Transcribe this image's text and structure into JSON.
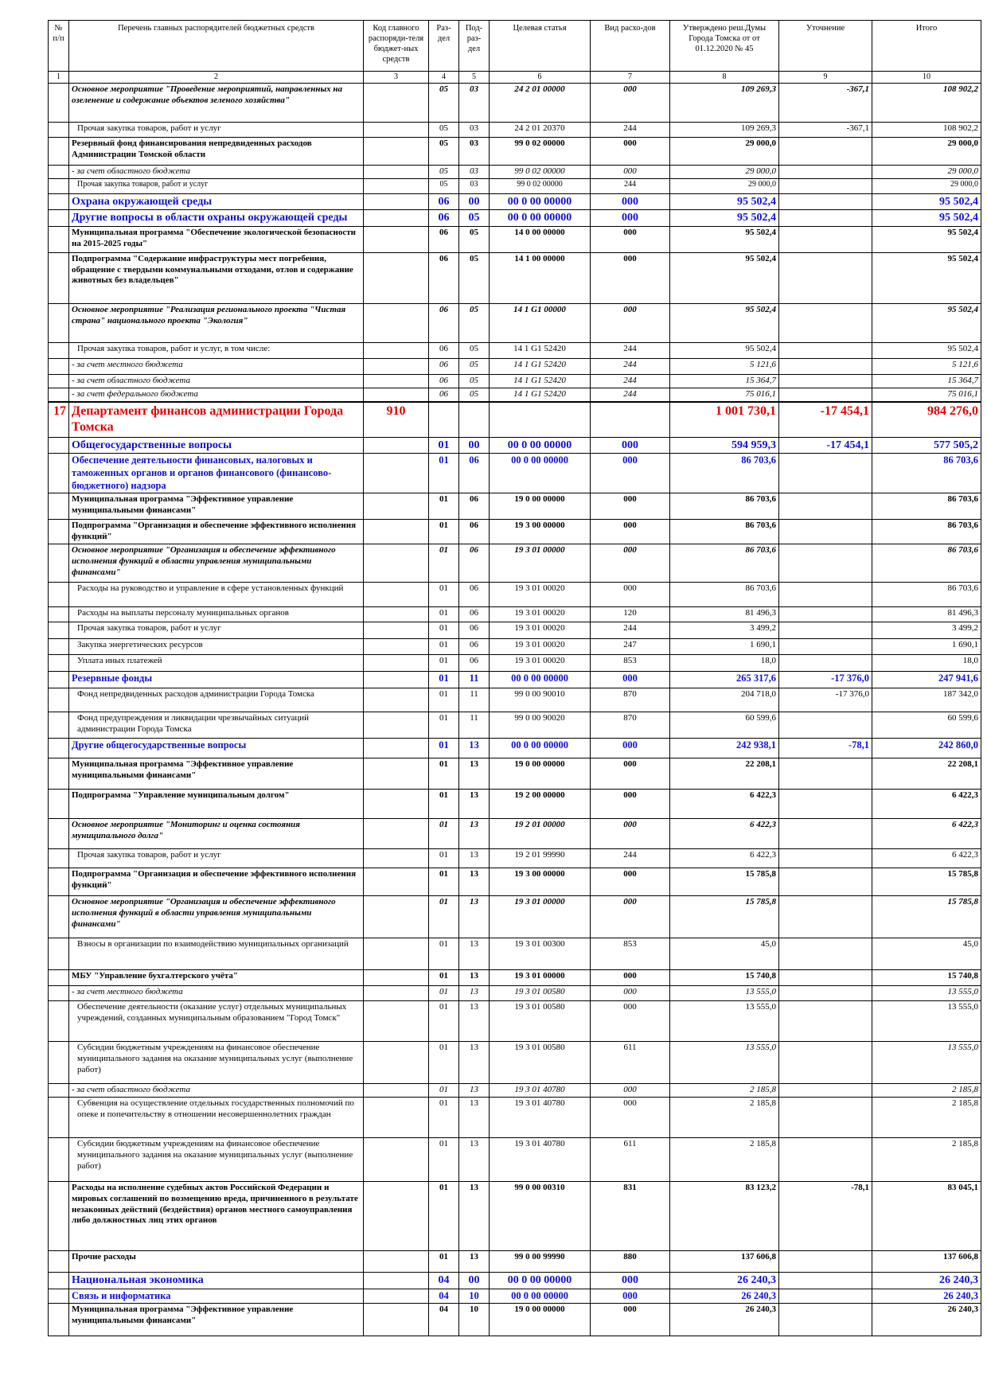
{
  "table": {
    "header": [
      "№ п/п",
      "Перечень главных распорядителей бюджетных средств",
      "Код главного распоряди-теля бюджет-ных средств",
      "Раз-дел",
      "Под-раз-дел",
      "Целевая статья",
      "Вид расхо-дов",
      "Утверждено реш.Думы Города Томска от от 01.12.2020 № 45",
      "Уточнение",
      "Итого"
    ],
    "column_numbers": [
      "1",
      "2",
      "3",
      "4",
      "5",
      "6",
      "7",
      "8",
      "9",
      "10"
    ],
    "rows": [
      [
        null,
        "Основное мероприятие \"Проведение мероприятий, направленных на озеленение и содержание объектов зеленого хозяйства\"",
        null,
        "05",
        "03",
        "24 2 01 00000",
        "000",
        "109 269,3",
        "-367,1",
        "108 902,2"
      ],
      [
        null,
        "Прочая закупка товаров, работ и услуг",
        null,
        "05",
        "03",
        "24 2 01 20370",
        "244",
        "109 269,3",
        "-367,1",
        "108 902,2"
      ],
      [
        null,
        "Резервный фонд финансирования непредвиденных расходов Администрации Томской области",
        null,
        "05",
        "03",
        "99 0 02 00000",
        "000",
        "29 000,0",
        null,
        "29 000,0"
      ],
      [
        null,
        "- за счет областного бюджета",
        null,
        "05",
        "03",
        "99 0 02 00000",
        "000",
        "29 000,0",
        null,
        "29 000,0"
      ],
      [
        null,
        "Прочая закупка товаров, работ и услуг",
        null,
        "05",
        "03",
        "99 0 02 00000",
        "244",
        "29 000,0",
        null,
        "29 000,0"
      ],
      [
        null,
        "Охрана окружающей среды",
        null,
        "06",
        "00",
        "00 0 00 00000",
        "000",
        "95 502,4",
        null,
        "95 502,4"
      ],
      [
        null,
        "Другие вопросы в области охраны окружающей среды",
        null,
        "06",
        "05",
        "00 0 00 00000",
        "000",
        "95 502,4",
        null,
        "95 502,4"
      ],
      [
        null,
        "Муниципальная программа \"Обеспечение экологической безопасности на 2015-2025 годы\"",
        null,
        "06",
        "05",
        "14 0 00 00000",
        "000",
        "95 502,4",
        null,
        "95 502,4"
      ],
      [
        null,
        "Подпрограмма \"Содержание инфраструктуры мест погребения, обращение с твердыми коммунальными отходами, отлов и содержание животных без владельцев\"",
        null,
        "06",
        "05",
        "14 1 00 00000",
        "000",
        "95 502,4",
        null,
        "95 502,4"
      ],
      [
        null,
        "Основное мероприятие \"Реализация регионального проекта \"Чистая страна\" национального проекта \"Экология\"",
        null,
        "06",
        "05",
        "14 1 G1 00000",
        "000",
        "95 502,4",
        null,
        "95 502,4"
      ],
      [
        null,
        "Прочая закупка товаров, работ и услуг, в том числе:",
        null,
        "06",
        "05",
        "14 1 G1 52420",
        "244",
        "95 502,4",
        null,
        "95 502,4"
      ],
      [
        null,
        "- за счет местного бюджета",
        null,
        "06",
        "05",
        "14 1 G1 52420",
        "244",
        "5 121,6",
        null,
        "5 121,6"
      ],
      [
        null,
        "- за счет областного бюджета",
        null,
        "06",
        "05",
        "14 1 G1 52420",
        "244",
        "15 364,7",
        null,
        "15 364,7"
      ],
      [
        null,
        "- за счет федерального бюджета",
        null,
        "06",
        "05",
        "14 1 G1 52420",
        "244",
        "75 016,1",
        null,
        "75 016,1"
      ],
      [
        "17",
        "Департамент финансов администрации Города Томска",
        "910",
        null,
        null,
        null,
        null,
        "1 001 730,1",
        "-17 454,1",
        "984 276,0"
      ],
      [
        null,
        "Общегосударственные вопросы",
        null,
        "01",
        "00",
        "00 0 00 00000",
        "000",
        "594 959,3",
        "-17 454,1",
        "577 505,2"
      ],
      [
        null,
        "Обеспечение деятельности финансовых, налоговых и таможенных органов и органов финансового (финансово-бюджетного) надзора",
        null,
        "01",
        "06",
        "00 0 00 00000",
        "000",
        "86 703,6",
        null,
        "86 703,6"
      ],
      [
        null,
        "Муниципальная программа \"Эффективное управление муниципальными финансами\"",
        null,
        "01",
        "06",
        "19 0 00 00000",
        "000",
        "86 703,6",
        null,
        "86 703,6"
      ],
      [
        null,
        "Подпрограмма \"Организация и обеспечение эффективного исполнения функций\"",
        null,
        "01",
        "06",
        "19 3 00 00000",
        "000",
        "86 703,6",
        null,
        "86 703,6"
      ],
      [
        null,
        "Основное мероприятие \"Организация и обеспечение эффективного исполнения функций в области управления муниципальными финансами\"",
        null,
        "01",
        "06",
        "19 3 01 00000",
        "000",
        "86 703,6",
        null,
        "86 703,6"
      ],
      [
        null,
        "Расходы на руководство и управление в сфере установленных функций",
        null,
        "01",
        "06",
        "19 3 01 00020",
        "000",
        "86 703,6",
        null,
        "86 703,6"
      ],
      [
        null,
        "Расходы на выплаты персоналу муниципальных органов",
        null,
        "01",
        "06",
        "19 3 01 00020",
        "120",
        "81 496,3",
        null,
        "81 496,3"
      ],
      [
        null,
        "Прочая закупка товаров, работ и услуг",
        null,
        "01",
        "06",
        "19 3 01 00020",
        "244",
        "3 499,2",
        null,
        "3 499,2"
      ],
      [
        null,
        "Закупка энергетических ресурсов",
        null,
        "01",
        "06",
        "19 3 01 00020",
        "247",
        "1 690,1",
        null,
        "1 690,1"
      ],
      [
        null,
        "Уплата иных платежей",
        null,
        "01",
        "06",
        "19 3 01 00020",
        "853",
        "18,0",
        null,
        "18,0"
      ],
      [
        null,
        "Резервные фонды",
        null,
        "01",
        "11",
        "00 0 00 00000",
        "000",
        "265 317,6",
        "-17 376,0",
        "247 941,6"
      ],
      [
        null,
        "Фонд непредвиденных расходов администрации Города Томска",
        null,
        "01",
        "11",
        "99 0 00 90010",
        "870",
        "204 718,0",
        "-17 376,0",
        "187 342,0"
      ],
      [
        null,
        "Фонд предупреждения и ликвидации чрезвычайных ситуаций администрации Города Томска",
        null,
        "01",
        "11",
        "99 0 00 90020",
        "870",
        "60 599,6",
        null,
        "60 599,6"
      ],
      [
        null,
        "Другие общегосударственные вопросы",
        null,
        "01",
        "13",
        "00 0 00 00000",
        "000",
        "242 938,1",
        "-78,1",
        "242 860,0"
      ],
      [
        null,
        "Муниципальная программа \"Эффективное управление муниципальными финансами\"",
        null,
        "01",
        "13",
        "19 0 00 00000",
        "000",
        "22 208,1",
        null,
        "22 208,1"
      ],
      [
        null,
        "Подпрограмма \"Управление муниципальным долгом\"",
        null,
        "01",
        "13",
        "19 2 00 00000",
        "000",
        "6 422,3",
        null,
        "6 422,3"
      ],
      [
        null,
        "Основное мероприятие \"Мониторинг и оценка состояния муниципального долга\"",
        null,
        "01",
        "13",
        "19 2 01 00000",
        "000",
        "6 422,3",
        null,
        "6 422,3"
      ],
      [
        null,
        "Прочая закупка товаров, работ и услуг",
        null,
        "01",
        "13",
        "19 2 01 99990",
        "244",
        "6 422,3",
        null,
        "6 422,3"
      ],
      [
        null,
        "Подпрограмма \"Организация и обеспечение эффективного исполнения функций\"",
        null,
        "01",
        "13",
        "19 3 00 00000",
        "000",
        "15 785,8",
        null,
        "15 785,8"
      ],
      [
        null,
        "Основное мероприятие \"Организация и обеспечение эффективного исполнения функций в области управления муниципальными финансами\"",
        null,
        "01",
        "13",
        "19 3 01 00000",
        "000",
        "15 785,8",
        null,
        "15 785,8"
      ],
      [
        null,
        "Взносы в организации по взаимодействию муниципальных организаций",
        null,
        "01",
        "13",
        "19 3 01 00300",
        "853",
        "45,0",
        null,
        "45,0"
      ],
      [
        null,
        "МБУ \"Управление бухгалтерского учёта\"",
        null,
        "01",
        "13",
        "19 3 01 00000",
        "000",
        "15 740,8",
        null,
        "15 740,8"
      ],
      [
        null,
        "- за счет местного бюджета",
        null,
        "01",
        "13",
        "19 3 01 00580",
        "000",
        "13 555,0",
        null,
        "13 555,0"
      ],
      [
        null,
        "Обеспечение деятельности (оказание услуг) отдельных муниципальных учреждений, созданных муниципальным образованием \"Город Томск\"",
        null,
        "01",
        "13",
        "19 3 01 00580",
        "000",
        "13 555,0",
        null,
        "13 555,0"
      ],
      [
        null,
        "Субсидии бюджетным учреждениям на финансовое обеспечение муниципального задания на оказание муниципальных услуг (выполнение работ)",
        null,
        "01",
        "13",
        "19 3 01 00580",
        "611",
        "13 555,0",
        null,
        "13 555,0"
      ],
      [
        null,
        "- за счет областного бюджета",
        null,
        "01",
        "13",
        "19 3 01 40780",
        "000",
        "2 185,8",
        null,
        "2 185,8"
      ],
      [
        null,
        "Субвенция на осуществление отдельных государственных полномочий по опеке и попечительству в отношении несовершеннолетних граждан",
        null,
        "01",
        "13",
        "19 3 01 40780",
        "000",
        "2 185,8",
        null,
        "2 185,8"
      ],
      [
        null,
        "Субсидии бюджетным учреждениям на финансовое обеспечение муниципального задания на оказание муниципальных услуг (выполнение работ)",
        null,
        "01",
        "13",
        "19 3 01 40780",
        "611",
        "2 185,8",
        null,
        "2 185,8"
      ],
      [
        null,
        "Расходы на исполнение судебных актов Российской Федерации и мировых соглашений по возмещению вреда, причиненного в результате незаконных действий (бездействия) органов местного самоуправления либо должностных лиц этих органов",
        null,
        "01",
        "13",
        "99 0 00 00310",
        "831",
        "83 123,2",
        "-78,1",
        "83 045,1"
      ],
      [
        null,
        "Прочие расходы",
        null,
        "01",
        "13",
        "99 0 00 99990",
        "880",
        "137 606,8",
        null,
        "137 606,8"
      ],
      [
        null,
        "Национальная экономика",
        null,
        "04",
        "00",
        "00 0 00 00000",
        "000",
        "26 240,3",
        null,
        "26 240,3"
      ],
      [
        null,
        "Связь и информатика",
        null,
        "04",
        "10",
        "00 0 00 00000",
        "000",
        "26 240,3",
        null,
        "26 240,3"
      ],
      [
        null,
        "Муниципальная программа \"Эффективное управление муниципальными финансами\"",
        null,
        "04",
        "10",
        "19 0 00 00000",
        "000",
        "26 240,3",
        null,
        "26 240,3"
      ]
    ]
  }
}
